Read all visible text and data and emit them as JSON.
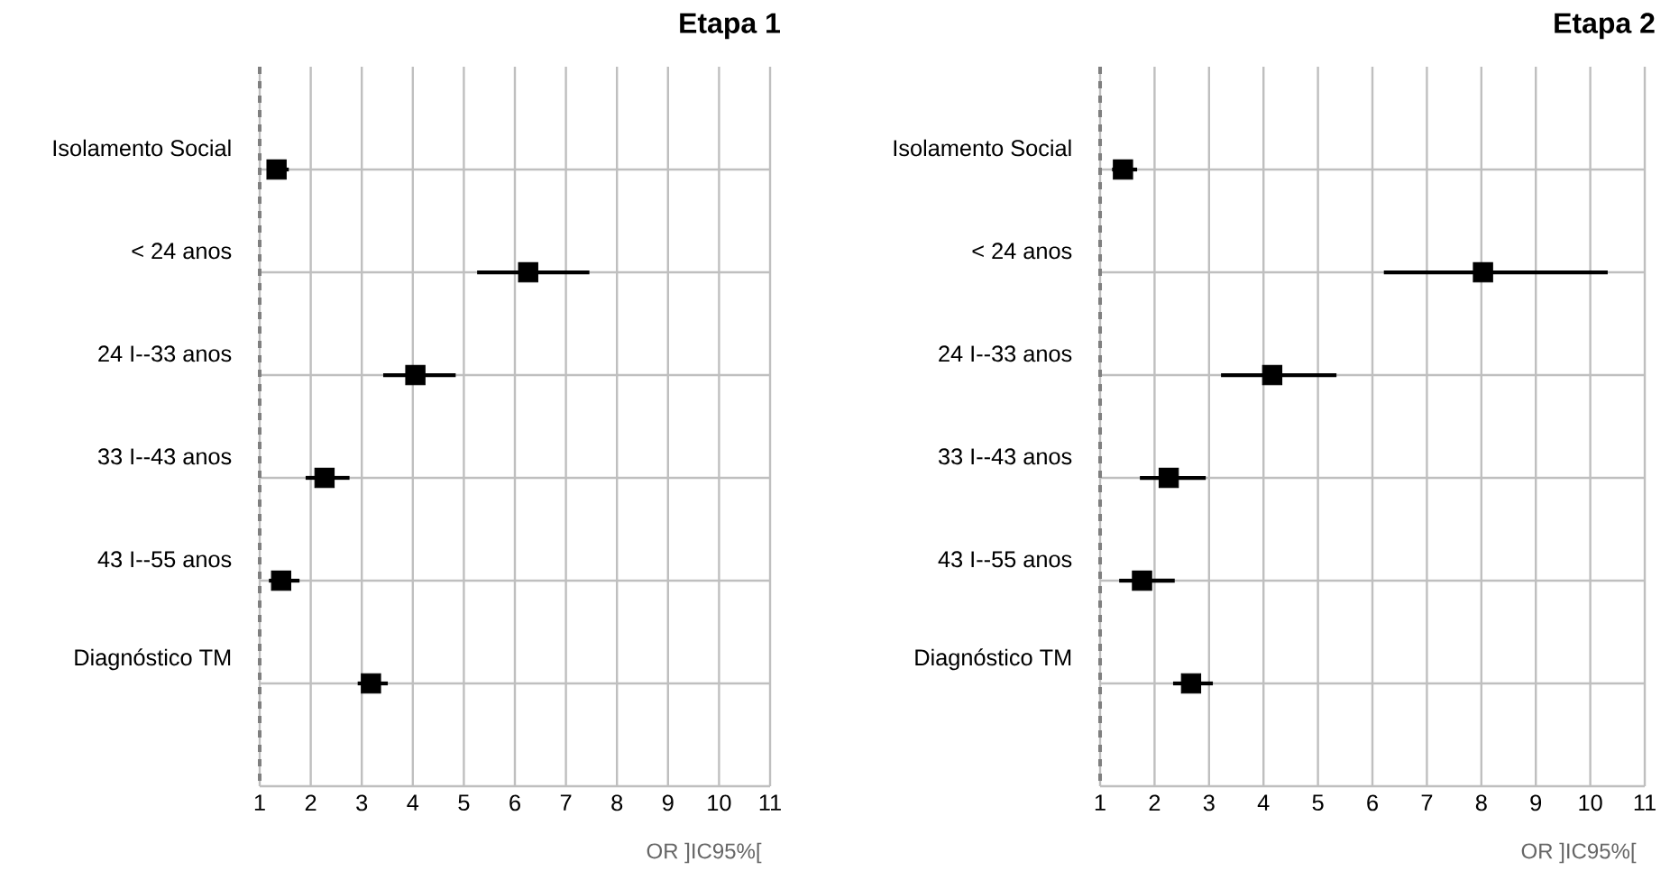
{
  "chart_data": [
    {
      "type": "scatter",
      "orientation": "horizontal",
      "title": "Etapa 1",
      "xlabel": "OR ]IC95%[",
      "categories": [
        "Isolamento Social",
        "< 24 anos",
        "24 I--33 anos",
        "33 I--43 anos",
        "43 I--55 anos",
        "Diagnóstico TM"
      ],
      "values": [
        1.33,
        6.26,
        4.05,
        2.27,
        1.42,
        3.18
      ],
      "errors": [
        [
          1.15,
          1.57
        ],
        [
          5.26,
          7.46
        ],
        [
          3.42,
          4.84
        ],
        [
          1.9,
          2.76
        ],
        [
          1.18,
          1.78
        ],
        [
          2.92,
          3.51
        ]
      ],
      "color": "#000000",
      "marker": "square",
      "grid": true,
      "xlim": [
        1,
        11
      ],
      "xticks": [
        1,
        2,
        3,
        4,
        5,
        6,
        7,
        8,
        9,
        10,
        11
      ],
      "ref_lines": [
        {
          "axis": "x",
          "value": 1,
          "color": "#7f7f7f",
          "line_style": "dashed"
        }
      ]
    },
    {
      "type": "scatter",
      "orientation": "horizontal",
      "title": "Etapa 2",
      "xlabel": "OR ]IC95%[",
      "categories": [
        "Isolamento Social",
        "< 24 anos",
        "24 I--33 anos",
        "33 I--43 anos",
        "43 I--55 anos",
        "Diagnóstico TM"
      ],
      "values": [
        1.42,
        8.03,
        4.16,
        2.26,
        1.77,
        2.67
      ],
      "errors": [
        [
          1.22,
          1.68
        ],
        [
          6.21,
          10.32
        ],
        [
          3.22,
          5.34
        ],
        [
          1.73,
          2.94
        ],
        [
          1.35,
          2.37
        ],
        [
          2.34,
          3.07
        ]
      ],
      "color": "#000000",
      "marker": "square",
      "grid": true,
      "xlim": [
        1,
        11
      ],
      "xticks": [
        1,
        2,
        3,
        4,
        5,
        6,
        7,
        8,
        9,
        10,
        11
      ],
      "ref_lines": [
        {
          "axis": "x",
          "value": 1,
          "color": "#7f7f7f",
          "line_style": "dashed"
        }
      ]
    }
  ]
}
